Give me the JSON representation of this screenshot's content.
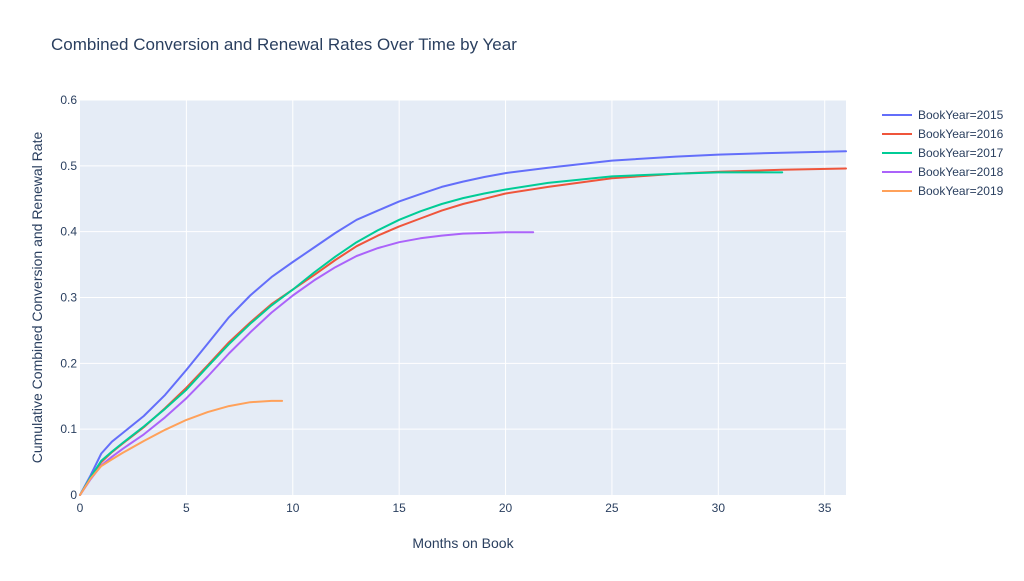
{
  "chart_data": {
    "type": "line",
    "title": "Combined Conversion and Renewal Rates Over Time by Year",
    "xlabel": "Months on Book",
    "ylabel": "Cumulative Combined Conversion and Renewal Rate",
    "xlim": [
      0,
      36
    ],
    "ylim": [
      0,
      0.6
    ],
    "xticks": [
      0,
      5,
      10,
      15,
      20,
      25,
      30,
      35
    ],
    "xtick_labels": [
      "0",
      "5",
      "10",
      "15",
      "20",
      "25",
      "30",
      "35"
    ],
    "yticks": [
      0,
      0.1,
      0.2,
      0.3,
      0.4,
      0.5,
      0.6
    ],
    "ytick_labels": [
      "0",
      "0.1",
      "0.2",
      "0.3",
      "0.4",
      "0.5",
      "0.6"
    ],
    "grid": true,
    "legend_position": "top-right",
    "background_color": "#E5ECF6",
    "series": [
      {
        "name": "BookYear=2015",
        "color": "#636EFA",
        "x": [
          0,
          0.5,
          1,
          1.5,
          2,
          3,
          4,
          5,
          6,
          7,
          8,
          9,
          10,
          11,
          12,
          13,
          14,
          15,
          16,
          17,
          18,
          19,
          20,
          22,
          25,
          28,
          30,
          33,
          36
        ],
        "y": [
          0,
          0.03,
          0.063,
          0.081,
          0.094,
          0.12,
          0.152,
          0.19,
          0.23,
          0.27,
          0.303,
          0.331,
          0.354,
          0.376,
          0.398,
          0.418,
          0.432,
          0.446,
          0.457,
          0.468,
          0.476,
          0.483,
          0.489,
          0.497,
          0.508,
          0.514,
          0.517,
          0.52,
          0.522
        ]
      },
      {
        "name": "BookYear=2016",
        "color": "#EF553B",
        "x": [
          0,
          0.5,
          1,
          1.5,
          2,
          3,
          4,
          5,
          6,
          7,
          8,
          9,
          10,
          11,
          12,
          13,
          14,
          15,
          16,
          17,
          18,
          19,
          20,
          22,
          25,
          28,
          30,
          33,
          36
        ],
        "y": [
          0,
          0.026,
          0.05,
          0.065,
          0.078,
          0.103,
          0.132,
          0.163,
          0.197,
          0.232,
          0.262,
          0.29,
          0.312,
          0.334,
          0.357,
          0.378,
          0.394,
          0.408,
          0.42,
          0.432,
          0.442,
          0.45,
          0.458,
          0.468,
          0.481,
          0.488,
          0.491,
          0.494,
          0.496
        ]
      },
      {
        "name": "BookYear=2017",
        "color": "#00CC96",
        "x": [
          0,
          0.5,
          1,
          1.5,
          2,
          3,
          4,
          5,
          6,
          7,
          8,
          9,
          10,
          11,
          12,
          13,
          14,
          15,
          16,
          17,
          18,
          19,
          20,
          22,
          25,
          28,
          30,
          33
        ],
        "y": [
          0,
          0.027,
          0.052,
          0.066,
          0.079,
          0.104,
          0.131,
          0.16,
          0.195,
          0.229,
          0.26,
          0.288,
          0.312,
          0.338,
          0.362,
          0.384,
          0.402,
          0.418,
          0.431,
          0.442,
          0.451,
          0.458,
          0.464,
          0.474,
          0.484,
          0.488,
          0.49,
          0.49
        ]
      },
      {
        "name": "BookYear=2018",
        "color": "#AB63FA",
        "x": [
          0,
          0.5,
          1,
          1.5,
          2,
          3,
          4,
          5,
          6,
          7,
          8,
          9,
          10,
          11,
          12,
          13,
          14,
          15,
          16,
          17,
          18,
          19,
          20,
          21.3
        ],
        "y": [
          0,
          0.024,
          0.045,
          0.058,
          0.07,
          0.092,
          0.118,
          0.147,
          0.18,
          0.215,
          0.247,
          0.277,
          0.303,
          0.326,
          0.346,
          0.363,
          0.375,
          0.384,
          0.39,
          0.394,
          0.397,
          0.398,
          0.399,
          0.399
        ]
      },
      {
        "name": "BookYear=2019",
        "color": "#FFA15A",
        "x": [
          0,
          0.5,
          1,
          1.5,
          2,
          3,
          4,
          5,
          6,
          7,
          8,
          9,
          9.5
        ],
        "y": [
          0,
          0.025,
          0.044,
          0.054,
          0.064,
          0.082,
          0.099,
          0.114,
          0.126,
          0.135,
          0.141,
          0.143,
          0.143
        ]
      }
    ]
  }
}
